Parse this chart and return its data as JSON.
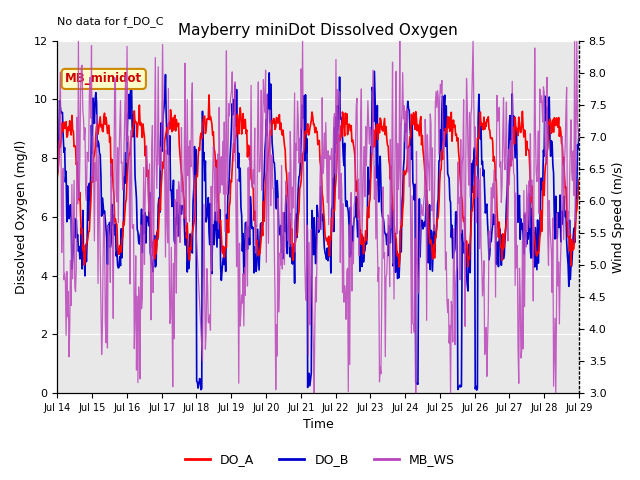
{
  "title": "Mayberry miniDot Dissolved Oxygen",
  "annotation": "No data for f_DO_C",
  "legend_box_label": "MB_minidot",
  "xlabel": "Time",
  "ylabel_left": "Dissolved Oxygen (mg/l)",
  "ylabel_right": "Wind Speed (m/s)",
  "ylim_left": [
    0,
    12
  ],
  "ylim_right": [
    3.0,
    8.5
  ],
  "yticks_left": [
    0,
    2,
    4,
    6,
    8,
    10,
    12
  ],
  "yticks_right": [
    3.0,
    3.5,
    4.0,
    4.5,
    5.0,
    5.5,
    6.0,
    6.5,
    7.0,
    7.5,
    8.0,
    8.5
  ],
  "color_DO_A": "#ff0000",
  "color_DO_B": "#0000cc",
  "color_MB_WS": "#bb44bb",
  "bg_color": "#e8e8e8",
  "legend_box_color": "#ffffcc",
  "legend_box_edge": "#cc8800",
  "n_days": 15,
  "seed": 42
}
